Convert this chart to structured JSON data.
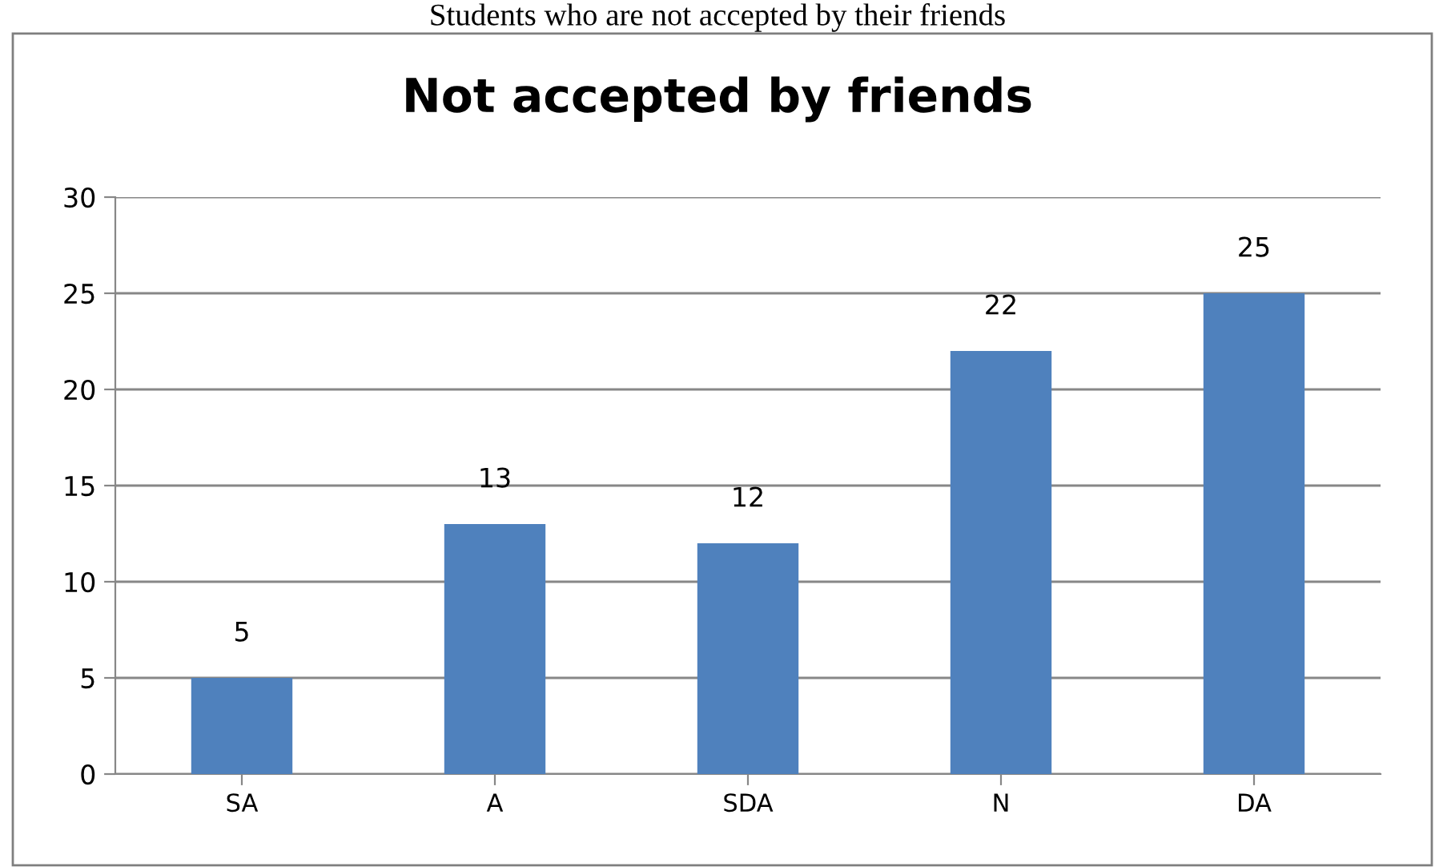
{
  "chart_data": {
    "type": "bar",
    "title": "Not accepted by friends",
    "annotations": [
      "Students who are not accepted by their friends"
    ],
    "categories": [
      "SA",
      "A",
      "SDA",
      "N",
      "DA"
    ],
    "values": [
      5,
      13,
      12,
      22,
      25
    ],
    "color": "#4f81bd",
    "ylim": [
      0,
      30
    ],
    "yticks": [
      0,
      5,
      10,
      15,
      20,
      25,
      30
    ],
    "grid": "y",
    "data_labels": true
  }
}
